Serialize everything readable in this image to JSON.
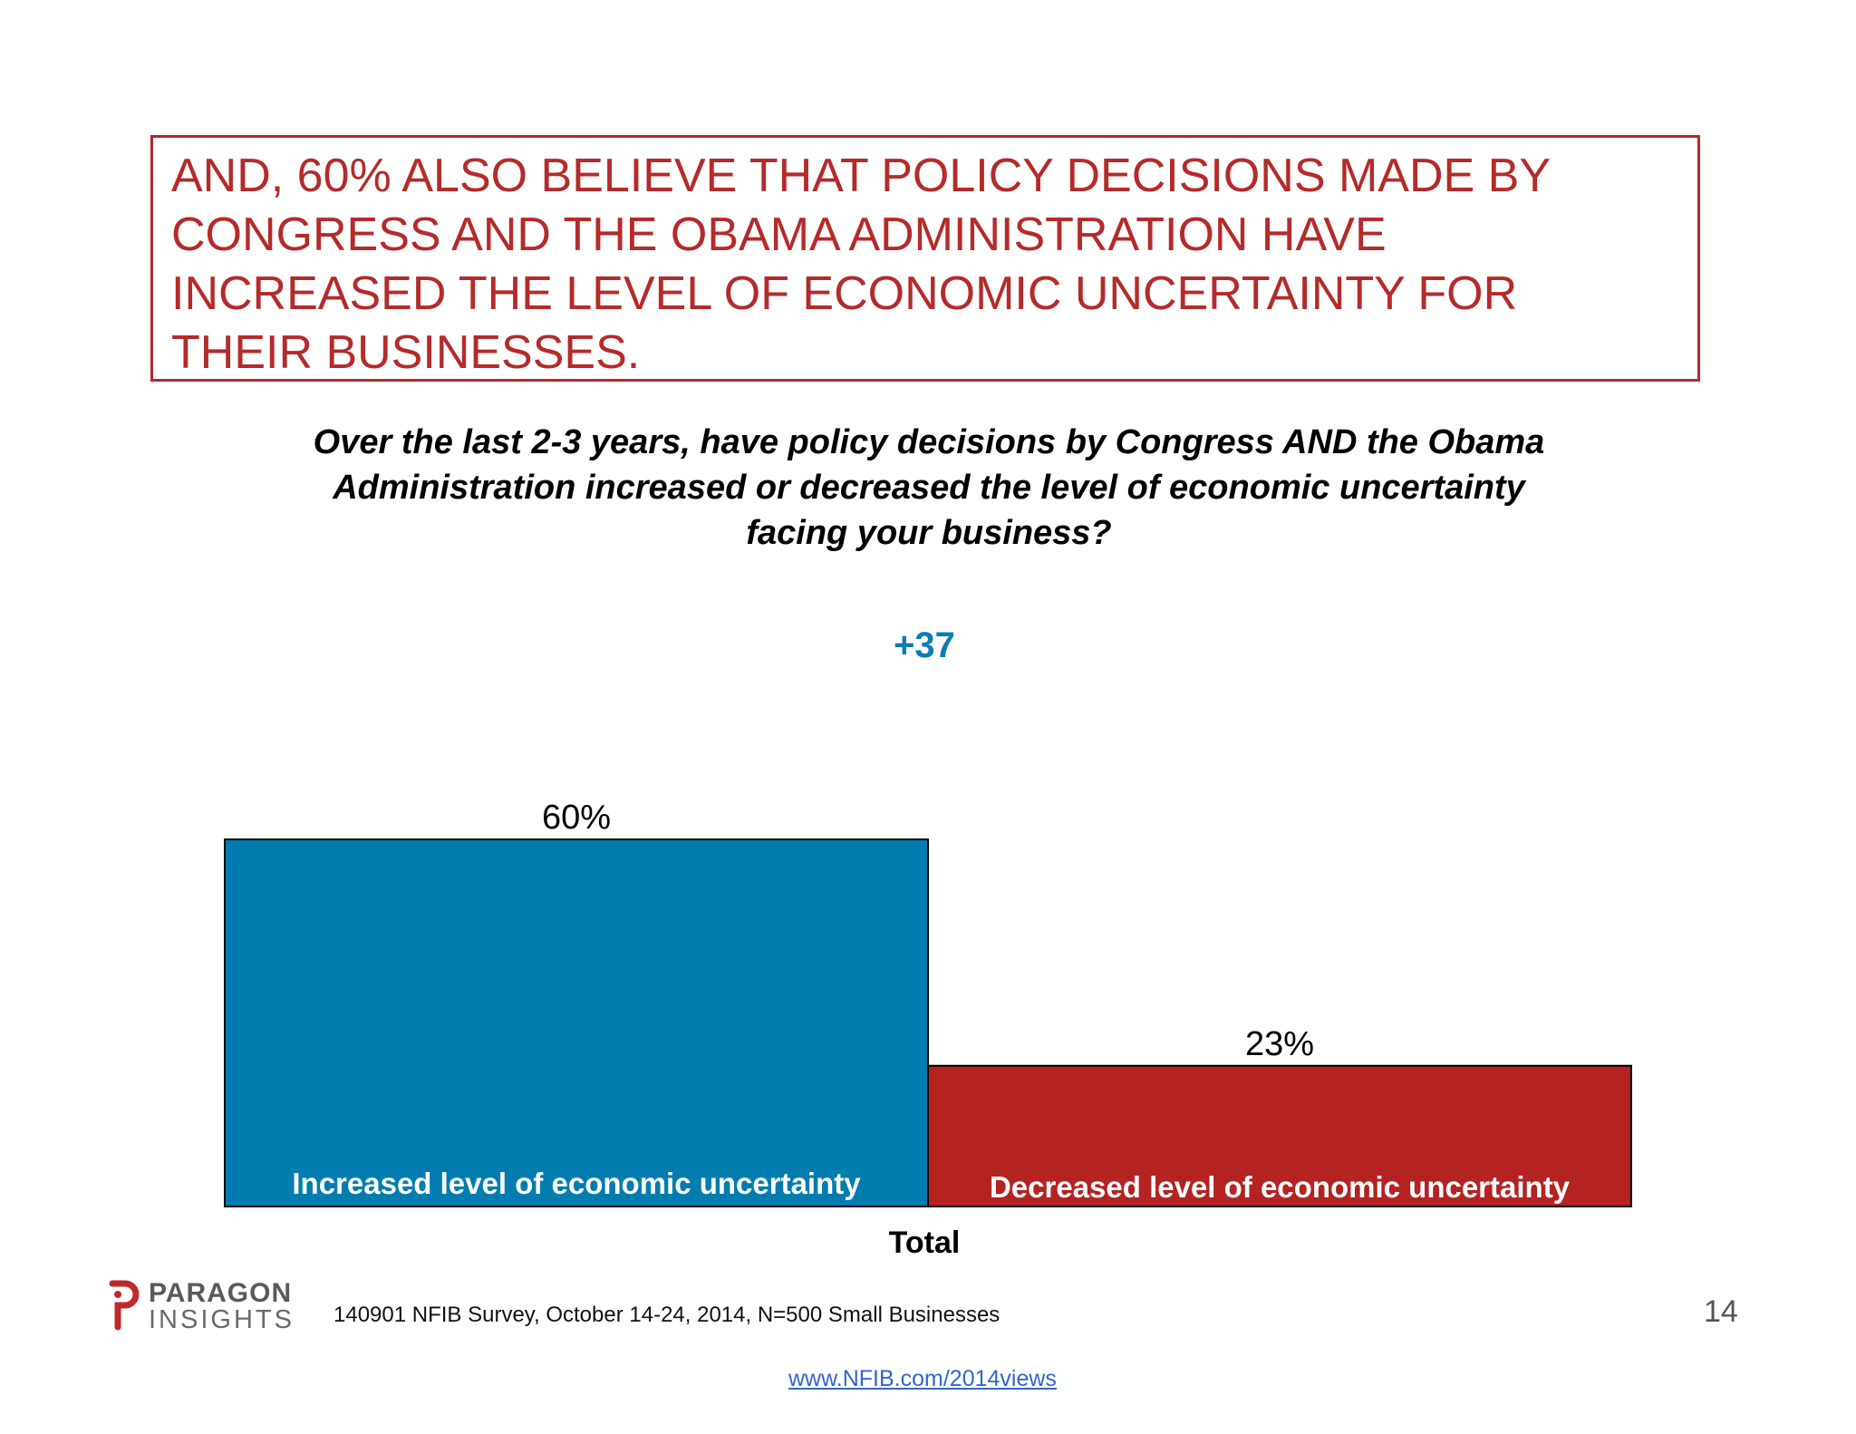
{
  "headline": "AND, 60% ALSO BELIEVE THAT POLICY DECISIONS MADE BY CONGRESS AND THE OBAMA ADMINISTRATION HAVE INCREASED THE LEVEL OF ECONOMIC UNCERTAINTY FOR THEIR BUSINESSES.",
  "headline_lines": [
    "AND, 60% ALSO BELIEVE THAT POLICY DECISIONS MADE BY",
    "CONGRESS AND THE OBAMA ADMINISTRATION HAVE",
    "INCREASED THE LEVEL OF ECONOMIC UNCERTAINTY FOR",
    "THEIR BUSINESSES."
  ],
  "question_lines": [
    "Over the last 2-3 years, have policy decisions by Congress AND the Obama",
    "Administration increased or decreased the level of economic uncertainty",
    "facing your business?"
  ],
  "net_difference": "+37",
  "colors": {
    "accent_red": "#b52a2a",
    "bar_blue": "#007dae",
    "bar_red": "#b42222",
    "net_blue": "#0b7db1"
  },
  "chart_data": {
    "type": "bar",
    "categories": [
      "Total"
    ],
    "series": [
      {
        "name": "Increased level of economic uncertainty",
        "values": [
          60
        ],
        "value_label": "60%",
        "color": "#007dae"
      },
      {
        "name": "Decreased level of economic uncertainty",
        "values": [
          23
        ],
        "value_label": "23%",
        "color": "#b42222"
      }
    ],
    "ylim": [
      0,
      60
    ],
    "grid": false,
    "legend": "none"
  },
  "logo": {
    "top": "PARAGON",
    "bottom": "INSIGHTS"
  },
  "source": "140901 NFIB Survey, October 14-24, 2014, N=500 Small Businesses",
  "page_number": "14",
  "link": "www.NFIB.com/2014views"
}
